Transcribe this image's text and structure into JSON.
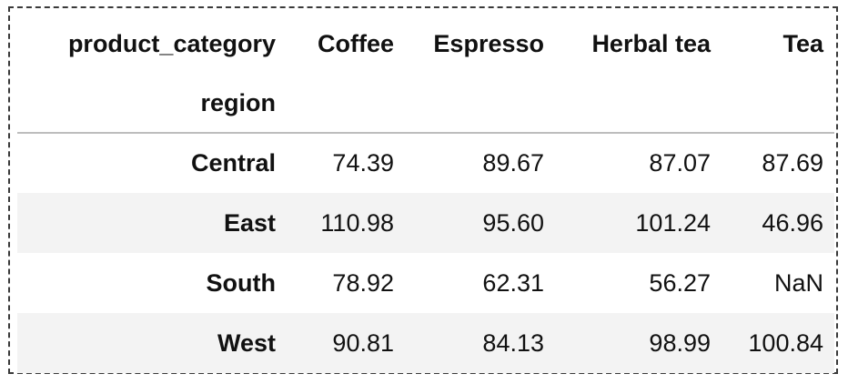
{
  "table": {
    "columns_name": "product_category",
    "index_name": "region",
    "columns": [
      "Coffee",
      "Espresso",
      "Herbal tea",
      "Tea"
    ],
    "rows": [
      {
        "label": "Central",
        "values": [
          "74.39",
          "89.67",
          "87.07",
          "87.69"
        ]
      },
      {
        "label": "East",
        "values": [
          "110.98",
          "95.60",
          "101.24",
          "46.96"
        ]
      },
      {
        "label": "South",
        "values": [
          "78.92",
          "62.31",
          "56.27",
          "NaN"
        ]
      },
      {
        "label": "West",
        "values": [
          "90.81",
          "84.13",
          "98.99",
          "100.84"
        ]
      }
    ]
  },
  "colors": {
    "striped_row": "#f3f3f3",
    "header_rule": "#bdbdbd",
    "frame_border": "#3a3a3a"
  }
}
